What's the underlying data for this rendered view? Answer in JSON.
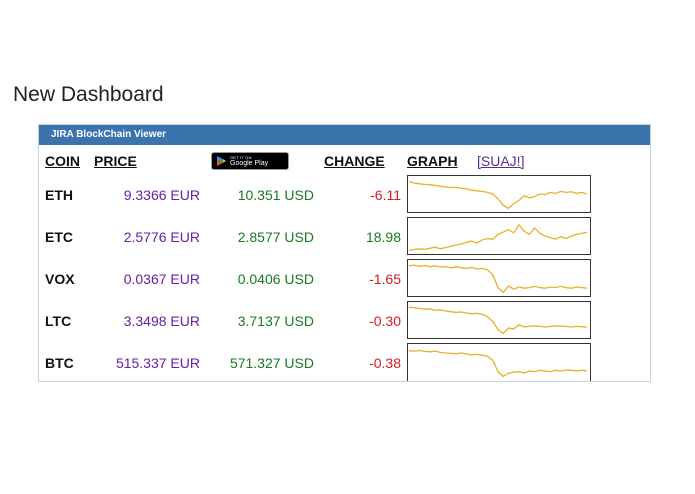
{
  "page_title": "New Dashboard",
  "panel": {
    "title": "JIRA BlockChain Viewer",
    "headers": {
      "coin": "COIN",
      "price": "PRICE",
      "change": "CHANGE",
      "graph": "GRAPH",
      "link": "[SUAJ!]"
    },
    "store_badge": {
      "small": "GET IT ON",
      "big": "Google Play"
    },
    "accent": "#3b73ad",
    "line_color": "#e8b125"
  },
  "rows": [
    {
      "coin": "ETH",
      "eur": "9.3366 EUR",
      "usd": "10.351 USD",
      "change": "-6.11",
      "direction": "neg",
      "spark": [
        0.88,
        0.84,
        0.82,
        0.8,
        0.79,
        0.77,
        0.74,
        0.72,
        0.7,
        0.71,
        0.68,
        0.66,
        0.62,
        0.6,
        0.58,
        0.55,
        0.5,
        0.35,
        0.15,
        0.05,
        0.2,
        0.3,
        0.45,
        0.38,
        0.42,
        0.5,
        0.48,
        0.55,
        0.52,
        0.58,
        0.55,
        0.57,
        0.52,
        0.55,
        0.5
      ]
    },
    {
      "coin": "ETC",
      "eur": "2.5776 EUR",
      "usd": "2.8577 USD",
      "change": "18.98",
      "direction": "pos",
      "spark": [
        0.05,
        0.08,
        0.1,
        0.08,
        0.12,
        0.15,
        0.1,
        0.14,
        0.18,
        0.22,
        0.25,
        0.3,
        0.34,
        0.28,
        0.38,
        0.42,
        0.4,
        0.55,
        0.62,
        0.7,
        0.6,
        0.85,
        0.65,
        0.55,
        0.75,
        0.58,
        0.5,
        0.45,
        0.4,
        0.48,
        0.42,
        0.5,
        0.55,
        0.58,
        0.62
      ]
    },
    {
      "coin": "VOX",
      "eur": "0.0367 EUR",
      "usd": "0.0406 USD",
      "change": "-1.65",
      "direction": "neg",
      "spark": [
        0.88,
        0.9,
        0.86,
        0.89,
        0.85,
        0.88,
        0.84,
        0.86,
        0.82,
        0.85,
        0.82,
        0.8,
        0.83,
        0.78,
        0.8,
        0.76,
        0.6,
        0.2,
        0.05,
        0.25,
        0.15,
        0.22,
        0.18,
        0.2,
        0.24,
        0.2,
        0.18,
        0.22,
        0.2,
        0.24,
        0.2,
        0.18,
        0.22,
        0.2,
        0.18
      ]
    },
    {
      "coin": "LTC",
      "eur": "3.3498 EUR",
      "usd": "3.7137 USD",
      "change": "-0.30",
      "direction": "neg",
      "spark": [
        0.9,
        0.88,
        0.86,
        0.84,
        0.85,
        0.8,
        0.82,
        0.78,
        0.76,
        0.74,
        0.75,
        0.72,
        0.7,
        0.71,
        0.68,
        0.6,
        0.45,
        0.2,
        0.08,
        0.25,
        0.22,
        0.35,
        0.28,
        0.3,
        0.32,
        0.3,
        0.28,
        0.3,
        0.32,
        0.31,
        0.3,
        0.28,
        0.3,
        0.29,
        0.28
      ]
    },
    {
      "coin": "BTC",
      "eur": "515.337 EUR",
      "usd": "571.327 USD",
      "change": "-0.38",
      "direction": "neg",
      "spark": [
        0.85,
        0.84,
        0.86,
        0.83,
        0.82,
        0.84,
        0.8,
        0.78,
        0.77,
        0.76,
        0.78,
        0.75,
        0.72,
        0.74,
        0.71,
        0.68,
        0.55,
        0.2,
        0.05,
        0.15,
        0.18,
        0.2,
        0.16,
        0.22,
        0.2,
        0.24,
        0.22,
        0.2,
        0.24,
        0.22,
        0.25,
        0.24,
        0.22,
        0.24,
        0.22
      ]
    }
  ]
}
